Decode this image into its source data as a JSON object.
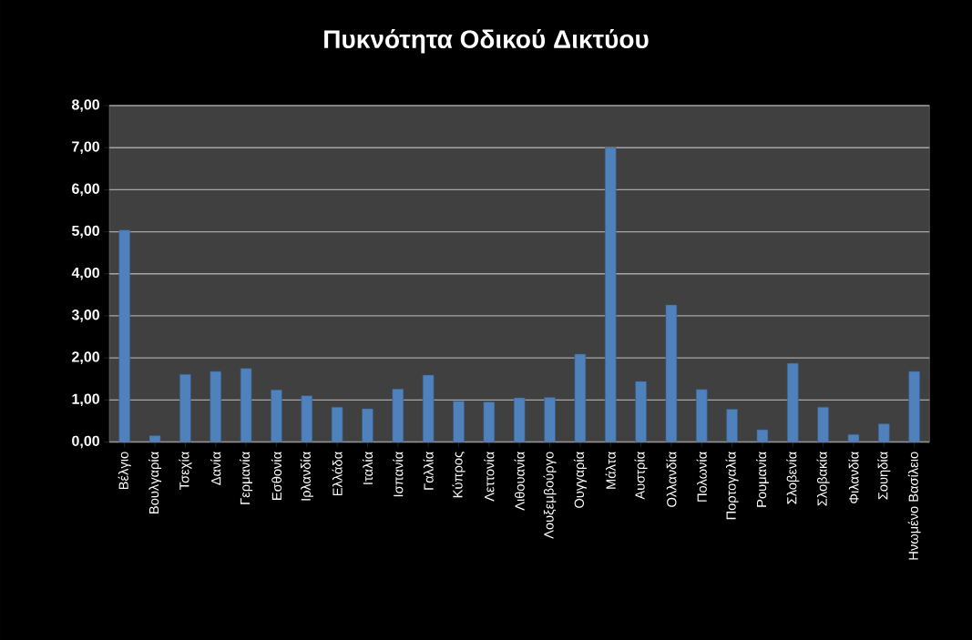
{
  "chart_data": {
    "type": "bar",
    "title": "Πυκνότητα Οδικού Δικτύου",
    "categories": [
      "Βέλγιο",
      "Βουλγαρία",
      "Τσεχία",
      "Δανία",
      "Γερμανία",
      "Εσθονία",
      "Ιρλανδία",
      "Ελλάδα",
      "Ιταλία",
      "Ισπανία",
      "Γαλλία",
      "Κύπρος",
      "Λεττονία",
      "Λιθουανία",
      "Λουξεμβούργο",
      "Ουγγαρία",
      "Μάλτα",
      "Αυστρία",
      "Ολλανδία",
      "Πολωνία",
      "Πορτογαλία",
      "Ρουμανία",
      "Σλοβενία",
      "Σλοβακία",
      "Φιλανδία",
      "Σουηδία",
      "Ηνωμένο Βασίλειο"
    ],
    "values": [
      5.04,
      0.15,
      1.61,
      1.68,
      1.75,
      1.24,
      1.1,
      0.83,
      0.79,
      1.26,
      1.59,
      0.97,
      0.95,
      1.05,
      1.06,
      2.09,
      7.0,
      1.44,
      3.26,
      1.25,
      0.78,
      0.29,
      1.87,
      0.83,
      0.18,
      0.43,
      1.68
    ],
    "color": "#4f81bd",
    "ylim": [
      0,
      8
    ],
    "yticks": [
      {
        "value": 0,
        "label": "0,00"
      },
      {
        "value": 1,
        "label": "1,00"
      },
      {
        "value": 2,
        "label": "2,00"
      },
      {
        "value": 3,
        "label": "3,00"
      },
      {
        "value": 4,
        "label": "4,00"
      },
      {
        "value": 5,
        "label": "5,00"
      },
      {
        "value": 6,
        "label": "6,00"
      },
      {
        "value": 7,
        "label": "7,00"
      },
      {
        "value": 8,
        "label": "8,00"
      }
    ],
    "grid": "y"
  }
}
